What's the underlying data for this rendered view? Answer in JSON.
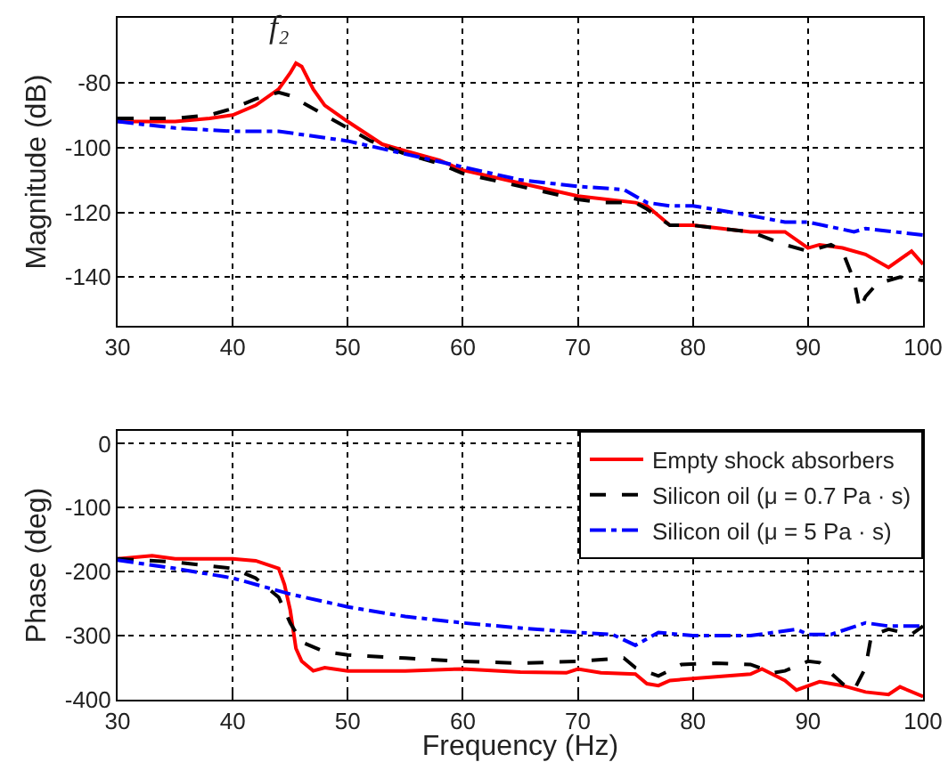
{
  "chart_data": [
    {
      "type": "line",
      "ylabel": "Magnitude (dB)",
      "xlim": [
        30,
        100
      ],
      "xticks": [
        30,
        40,
        50,
        60,
        70,
        80,
        90,
        100
      ],
      "ylim": [
        -155,
        -60
      ],
      "yticks": [
        -140,
        -120,
        -100,
        -80
      ],
      "grid": true,
      "legend": false,
      "marker": "none",
      "annotations": [
        {
          "text": "f₂",
          "x": 45.5,
          "y": -74
        }
      ],
      "series": [
        {
          "color": "#ff0000",
          "line_style": "solid",
          "x": [
            30,
            35,
            38,
            40,
            42,
            44,
            45,
            45.5,
            46,
            47,
            48,
            50,
            53,
            55,
            58,
            60,
            65,
            70,
            75,
            76,
            78,
            80,
            85,
            88,
            90,
            91,
            93,
            95,
            97,
            99,
            100
          ],
          "values": [
            -92,
            -92,
            -91,
            -90,
            -87,
            -82,
            -77,
            -74,
            -75,
            -82,
            -87,
            -92,
            -99,
            -101,
            -104,
            -107,
            -111,
            -115,
            -117,
            -118,
            -124,
            -124,
            -126,
            -126,
            -131,
            -130,
            -131,
            -133,
            -137,
            -132,
            -136
          ]
        },
        {
          "color": "#000000",
          "line_style": "dashed",
          "x": [
            30,
            35,
            38,
            40,
            42,
            44,
            45,
            47,
            50,
            52,
            55,
            58,
            60,
            65,
            70,
            72,
            75,
            76,
            78,
            80,
            85,
            88,
            90,
            92,
            93,
            94,
            94.5,
            95,
            96,
            98,
            100
          ],
          "values": [
            -91,
            -91,
            -90,
            -88,
            -85,
            -83,
            -84,
            -88,
            -94,
            -98,
            -102,
            -105,
            -108,
            -112,
            -116,
            -117,
            -117,
            -119,
            -124,
            -124,
            -126,
            -130,
            -132,
            -130,
            -132,
            -141,
            -150,
            -146,
            -142,
            -140,
            -141
          ]
        },
        {
          "color": "#0000ff",
          "line_style": "dashdot",
          "x": [
            30,
            35,
            40,
            44,
            48,
            50,
            55,
            60,
            65,
            70,
            74,
            76,
            78,
            80,
            85,
            88,
            90,
            94,
            95,
            100
          ],
          "values": [
            -92,
            -94,
            -95,
            -95,
            -97,
            -98,
            -102,
            -106,
            -110,
            -112,
            -113,
            -117,
            -118,
            -118,
            -121,
            -123,
            -123,
            -126,
            -125,
            -127
          ]
        }
      ]
    },
    {
      "type": "line",
      "xlabel": "Frequency (Hz)",
      "ylabel": "Phase (deg)",
      "xlim": [
        30,
        100
      ],
      "xticks": [
        30,
        40,
        50,
        60,
        70,
        80,
        90,
        100
      ],
      "ylim": [
        -400,
        20
      ],
      "yticks": [
        -400,
        -300,
        -200,
        -100,
        0
      ],
      "grid": true,
      "legend": "top right",
      "marker": "none",
      "series": [
        {
          "name": "Empty shock absorbers",
          "color": "#ff0000",
          "line_style": "solid",
          "x": [
            30,
            33,
            35,
            40,
            42,
            44,
            44.5,
            45,
            45.5,
            46,
            47,
            48,
            50,
            55,
            60,
            65,
            69,
            70,
            72,
            75,
            76,
            77,
            78,
            80,
            85,
            86,
            88,
            89,
            91,
            93,
            95,
            97,
            98,
            100
          ],
          "values": [
            -180,
            -175,
            -180,
            -180,
            -183,
            -195,
            -220,
            -260,
            -320,
            -340,
            -355,
            -350,
            -355,
            -355,
            -352,
            -357,
            -358,
            -352,
            -358,
            -360,
            -375,
            -378,
            -370,
            -367,
            -360,
            -352,
            -370,
            -385,
            -372,
            -378,
            -388,
            -392,
            -380,
            -395
          ]
        },
        {
          "name": "Silicon oil (μ = 0.7 Pa · s)",
          "color": "#000000",
          "line_style": "dashed",
          "x": [
            30,
            35,
            40,
            42,
            44,
            45,
            46,
            48,
            50,
            55,
            60,
            65,
            70,
            74,
            75,
            77,
            79,
            82,
            85,
            87,
            88,
            90,
            91,
            93,
            94,
            95,
            95.5,
            97,
            99,
            100
          ],
          "values": [
            -180,
            -185,
            -195,
            -210,
            -240,
            -280,
            -310,
            -325,
            -330,
            -335,
            -340,
            -343,
            -340,
            -335,
            -350,
            -363,
            -345,
            -343,
            -345,
            -358,
            -355,
            -340,
            -342,
            -375,
            -385,
            -350,
            -300,
            -290,
            -298,
            -285
          ]
        },
        {
          "name": "Silicon oil (μ = 5 Pa · s)",
          "color": "#0000ff",
          "line_style": "dashdot",
          "x": [
            30,
            35,
            40,
            43,
            45,
            50,
            55,
            60,
            65,
            70,
            73,
            75,
            77,
            80,
            85,
            89,
            90,
            92,
            95,
            97,
            100
          ],
          "values": [
            -182,
            -195,
            -210,
            -225,
            -235,
            -255,
            -270,
            -280,
            -288,
            -295,
            -298,
            -315,
            -295,
            -300,
            -300,
            -290,
            -298,
            -298,
            -280,
            -285,
            -285
          ]
        }
      ]
    }
  ]
}
